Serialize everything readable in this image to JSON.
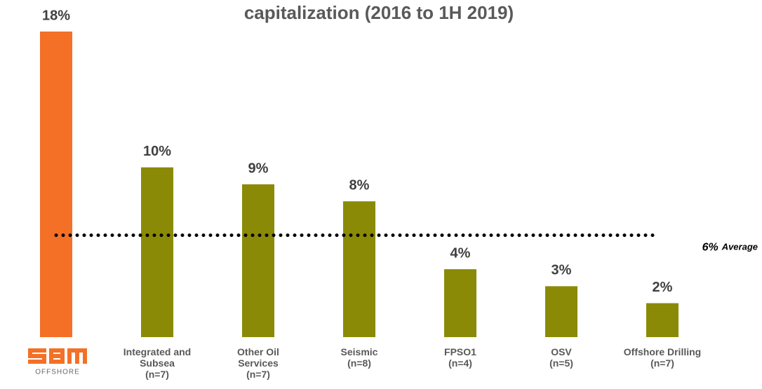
{
  "chart_data": {
    "type": "bar",
    "title": "capitalization (2016 to 1H 2019)",
    "categories": [
      null,
      "Integrated and Subsea",
      "Other Oil Services",
      "Seismic",
      "FPSO1",
      "OSV",
      "Offshore Drilling"
    ],
    "counts": [
      null,
      "(n=7)",
      "(n=7)",
      "(n=8)",
      "(n=4)",
      "(n=5)",
      "(n=7)"
    ],
    "values": [
      18,
      10,
      9,
      8,
      4,
      3,
      2
    ],
    "value_labels": [
      "18%",
      "10%",
      "9%",
      "8%",
      "4%",
      "3%",
      "2%"
    ],
    "colors": [
      "#f47027",
      "#8b8a06",
      "#8b8a06",
      "#8b8a06",
      "#8b8a06",
      "#8b8a06",
      "#8b8a06"
    ],
    "ylim": [
      0,
      18
    ],
    "average": {
      "value": 6,
      "value_label": "6%",
      "label": "Average"
    },
    "logo_text": "OFFSHORE"
  }
}
